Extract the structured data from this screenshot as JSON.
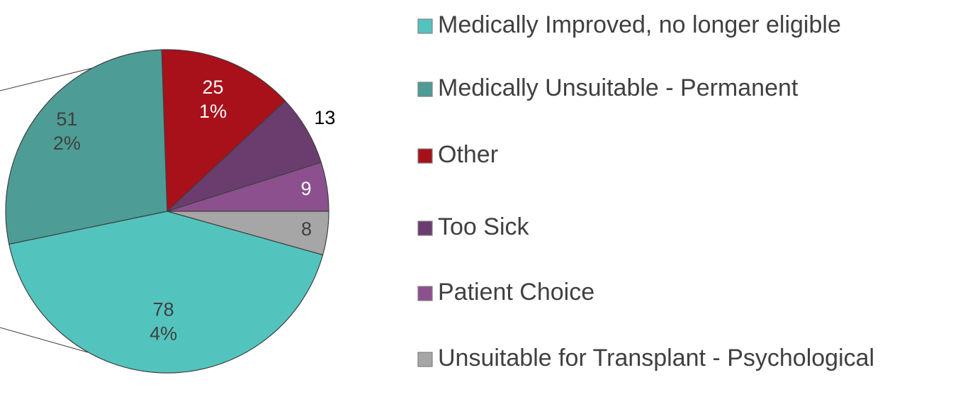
{
  "chart_data": {
    "type": "pie",
    "categories": [
      "Medically Improved, no longer eligible",
      "Medically Unsuitable - Permanent",
      "Other",
      "Too Sick",
      "Patient Choice",
      "Unsuitable for Transplant - Psychological"
    ],
    "values": [
      78,
      51,
      25,
      13,
      9,
      8
    ],
    "percent_labels": [
      "4%",
      "2%",
      "1%",
      null,
      null,
      null
    ],
    "colors": [
      "#52c4bd",
      "#4e9c96",
      "#a8101a",
      "#6a3d6e",
      "#8c508e",
      "#a6a6a6"
    ],
    "legend": "right"
  }
}
